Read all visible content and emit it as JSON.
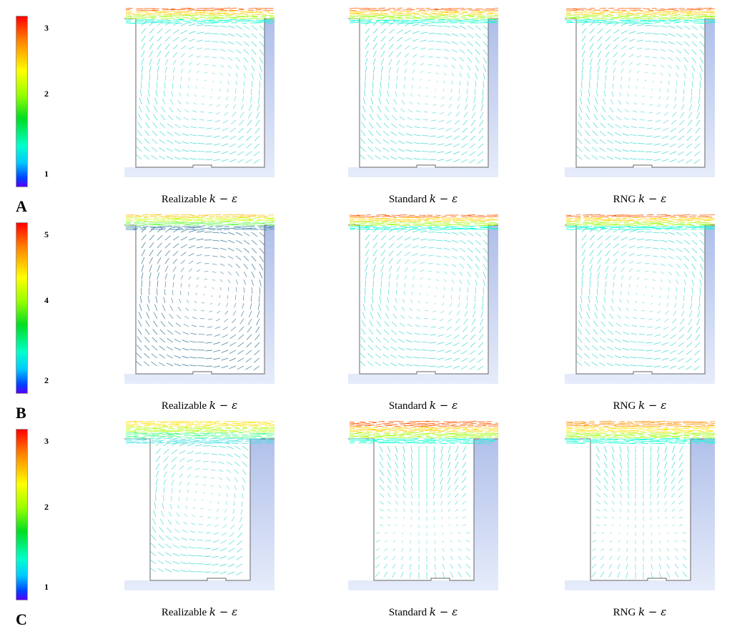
{
  "rows": [
    {
      "letter": "A",
      "colorbar": {
        "ticks": [
          "3",
          "2",
          "1"
        ]
      },
      "panels": [
        {
          "model": "Realizable",
          "math": "k − ε",
          "geometry": "square-wide",
          "flow": "strong-single-vortex",
          "colors": [
            "#ff5a00",
            "#ffd000",
            "#9cff00",
            "#00ffd0"
          ]
        },
        {
          "model": "Standard",
          "math": "k − ε",
          "geometry": "square-wide",
          "flow": "single-vortex",
          "colors": [
            "#ff5a00",
            "#ffd000",
            "#9cff00",
            "#00ffd0"
          ]
        },
        {
          "model": "RNG",
          "math": "k − ε",
          "geometry": "square-wide",
          "flow": "single-vortex",
          "colors": [
            "#ff5a00",
            "#ffd000",
            "#9cff00",
            "#00ffd0"
          ]
        }
      ]
    },
    {
      "letter": "B",
      "colorbar": {
        "ticks": [
          "5",
          "4",
          "2"
        ]
      },
      "panels": [
        {
          "model": "Realizable",
          "math": "k − ε",
          "geometry": "square-wide",
          "flow": "dark-vortex",
          "colors": [
            "#ffc000",
            "#c8ff00",
            "#60ff40",
            "#3a7fa8"
          ]
        },
        {
          "model": "Standard",
          "math": "k − ε",
          "geometry": "square-wide",
          "flow": "single-vortex",
          "colors": [
            "#ff5a00",
            "#ffd000",
            "#9cff00",
            "#00ffd0"
          ]
        },
        {
          "model": "RNG",
          "math": "k − ε",
          "geometry": "square-wide",
          "flow": "single-vortex",
          "colors": [
            "#ff5a00",
            "#ffd000",
            "#9cff00",
            "#00ffd0"
          ]
        }
      ]
    },
    {
      "letter": "C",
      "colorbar": {
        "ticks": [
          "3",
          "2",
          "1"
        ]
      },
      "panels": [
        {
          "model": "Realizable",
          "math": "k − ε",
          "geometry": "narrow",
          "flow": "single-vortex",
          "colors": [
            "#ffe000",
            "#b0ff00",
            "#40ff80",
            "#40e0e0"
          ]
        },
        {
          "model": "Standard",
          "math": "k − ε",
          "geometry": "narrow",
          "flow": "twin-vortex",
          "colors": [
            "#ff5a00",
            "#ffd000",
            "#9cff00",
            "#00ffd0"
          ]
        },
        {
          "model": "RNG",
          "math": "k − ε",
          "geometry": "narrow",
          "flow": "twin-vortex",
          "colors": [
            "#ff9000",
            "#ffe000",
            "#9cff00",
            "#00ffd0"
          ]
        }
      ]
    }
  ]
}
